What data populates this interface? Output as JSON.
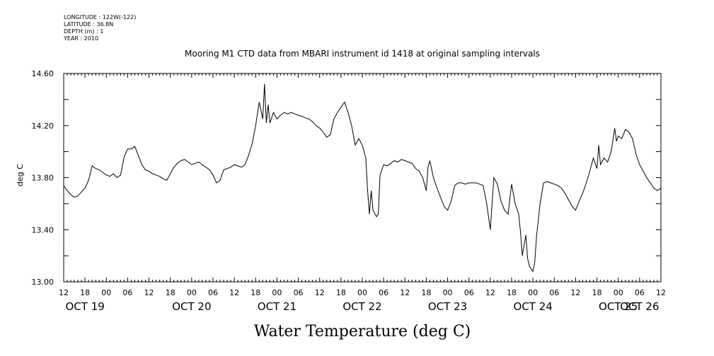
{
  "header": {
    "longitude": "LONGITUDE : 122W(-122)",
    "latitude": "LATITUDE : 36.8N",
    "depth": "DEPTH (m) : 1",
    "year": "YEAR : 2010"
  },
  "chart_data": {
    "type": "line",
    "title": "Mooring M1 CTD data from MBARI instrument id 1418 at original sampling intervals",
    "ylabel": "deg C",
    "xlabel": "Water Temperature (deg C)",
    "ylim": [
      13.0,
      14.6
    ],
    "yticks": [
      "13.00",
      "13.40",
      "13.80",
      "14.20",
      "14.60"
    ],
    "x_range_hours": [
      0,
      168
    ],
    "x_unit": "hours since OCT 19 12:00",
    "hour_tick_labels": [
      "12",
      "18",
      "00",
      "06",
      "12",
      "18",
      "00",
      "06",
      "12",
      "18",
      "00",
      "06",
      "12",
      "18",
      "00",
      "06",
      "12",
      "18",
      "00",
      "06",
      "12",
      "18",
      "00",
      "06",
      "12",
      "18",
      "00",
      "06",
      "12"
    ],
    "date_labels": [
      "OCT 19",
      "OCT 20",
      "OCT 21",
      "OCT 22",
      "OCT 23",
      "OCT 24",
      "OCT 25",
      "OCT 26"
    ],
    "series": [
      {
        "color": "#000000",
        "points": [
          [
            0,
            13.74
          ],
          [
            1,
            13.7
          ],
          [
            2,
            13.67
          ],
          [
            3,
            13.65
          ],
          [
            4,
            13.66
          ],
          [
            5,
            13.69
          ],
          [
            6,
            13.72
          ],
          [
            7,
            13.78
          ],
          [
            8,
            13.89
          ],
          [
            9,
            13.87
          ],
          [
            10,
            13.86
          ],
          [
            11,
            13.84
          ],
          [
            12,
            13.82
          ],
          [
            13,
            13.81
          ],
          [
            14,
            13.83
          ],
          [
            15,
            13.8
          ],
          [
            16,
            13.82
          ],
          [
            17,
            13.96
          ],
          [
            18,
            14.02
          ],
          [
            19,
            14.02
          ],
          [
            20,
            14.04
          ],
          [
            21,
            13.97
          ],
          [
            22,
            13.9
          ],
          [
            23,
            13.86
          ],
          [
            24,
            13.85
          ],
          [
            25,
            13.83
          ],
          [
            26,
            13.82
          ],
          [
            27,
            13.81
          ],
          [
            28,
            13.79
          ],
          [
            29,
            13.78
          ],
          [
            30,
            13.83
          ],
          [
            31,
            13.88
          ],
          [
            32,
            13.91
          ],
          [
            33,
            13.93
          ],
          [
            34,
            13.94
          ],
          [
            35,
            13.92
          ],
          [
            36,
            13.9
          ],
          [
            37,
            13.91
          ],
          [
            38,
            13.92
          ],
          [
            39,
            13.9
          ],
          [
            40,
            13.88
          ],
          [
            41,
            13.86
          ],
          [
            42,
            13.82
          ],
          [
            43,
            13.76
          ],
          [
            44,
            13.78
          ],
          [
            45,
            13.86
          ],
          [
            46,
            13.87
          ],
          [
            47,
            13.88
          ],
          [
            48,
            13.9
          ],
          [
            49,
            13.89
          ],
          [
            50,
            13.88
          ],
          [
            51,
            13.9
          ],
          [
            52,
            13.97
          ],
          [
            53,
            14.06
          ],
          [
            54,
            14.2
          ],
          [
            55,
            14.38
          ],
          [
            56,
            14.25
          ],
          [
            56.5,
            14.52
          ],
          [
            57,
            14.22
          ],
          [
            57.5,
            14.36
          ],
          [
            58,
            14.22
          ],
          [
            59,
            14.3
          ],
          [
            60,
            14.25
          ],
          [
            61,
            14.28
          ],
          [
            62,
            14.3
          ],
          [
            63,
            14.29
          ],
          [
            64,
            14.3
          ],
          [
            65,
            14.29
          ],
          [
            66,
            14.28
          ],
          [
            67,
            14.27
          ],
          [
            68,
            14.26
          ],
          [
            69,
            14.25
          ],
          [
            70,
            14.23
          ],
          [
            71,
            14.2
          ],
          [
            72,
            14.18
          ],
          [
            73,
            14.15
          ],
          [
            74,
            14.11
          ],
          [
            75,
            14.13
          ],
          [
            76,
            14.25
          ],
          [
            77,
            14.3
          ],
          [
            78,
            14.34
          ],
          [
            79,
            14.38
          ],
          [
            80,
            14.3
          ],
          [
            81,
            14.2
          ],
          [
            82,
            14.05
          ],
          [
            83,
            14.1
          ],
          [
            84,
            14.05
          ],
          [
            85,
            13.95
          ],
          [
            85.5,
            13.7
          ],
          [
            86,
            13.52
          ],
          [
            86.5,
            13.7
          ],
          [
            87,
            13.55
          ],
          [
            88,
            13.5
          ],
          [
            88.5,
            13.52
          ],
          [
            89,
            13.82
          ],
          [
            90,
            13.9
          ],
          [
            91,
            13.89
          ],
          [
            92,
            13.91
          ],
          [
            93,
            13.93
          ],
          [
            94,
            13.92
          ],
          [
            95,
            13.94
          ],
          [
            96,
            13.93
          ],
          [
            97,
            13.92
          ],
          [
            98,
            13.91
          ],
          [
            99,
            13.87
          ],
          [
            100,
            13.85
          ],
          [
            101,
            13.8
          ],
          [
            102,
            13.7
          ],
          [
            102.5,
            13.88
          ],
          [
            103,
            13.93
          ],
          [
            104,
            13.8
          ],
          [
            105,
            13.72
          ],
          [
            106,
            13.65
          ],
          [
            107,
            13.58
          ],
          [
            108,
            13.55
          ],
          [
            109,
            13.62
          ],
          [
            110,
            13.74
          ],
          [
            111,
            13.76
          ],
          [
            112,
            13.76
          ],
          [
            113,
            13.75
          ],
          [
            114,
            13.76
          ],
          [
            115,
            13.76
          ],
          [
            116,
            13.76
          ],
          [
            117,
            13.75
          ],
          [
            118,
            13.74
          ],
          [
            119,
            13.6
          ],
          [
            120,
            13.4
          ],
          [
            120.5,
            13.6
          ],
          [
            121,
            13.8
          ],
          [
            122,
            13.75
          ],
          [
            123,
            13.62
          ],
          [
            124,
            13.55
          ],
          [
            125,
            13.52
          ],
          [
            126,
            13.75
          ],
          [
            127,
            13.6
          ],
          [
            128,
            13.52
          ],
          [
            128.5,
            13.38
          ],
          [
            129,
            13.2
          ],
          [
            130,
            13.36
          ],
          [
            130.5,
            13.18
          ],
          [
            131,
            13.12
          ],
          [
            132,
            13.08
          ],
          [
            132.5,
            13.15
          ],
          [
            133,
            13.35
          ],
          [
            134,
            13.6
          ],
          [
            135,
            13.76
          ],
          [
            136,
            13.77
          ],
          [
            137,
            13.76
          ],
          [
            138,
            13.75
          ],
          [
            139,
            13.74
          ],
          [
            140,
            13.72
          ],
          [
            141,
            13.68
          ],
          [
            142,
            13.63
          ],
          [
            143,
            13.58
          ],
          [
            144,
            13.55
          ],
          [
            145,
            13.62
          ],
          [
            146,
            13.68
          ],
          [
            147,
            13.76
          ],
          [
            148,
            13.85
          ],
          [
            149,
            13.95
          ],
          [
            150,
            13.87
          ],
          [
            150.5,
            14.05
          ],
          [
            151,
            13.9
          ],
          [
            152,
            13.95
          ],
          [
            153,
            13.92
          ],
          [
            154,
            14.0
          ],
          [
            155,
            14.18
          ],
          [
            155.5,
            14.08
          ],
          [
            156,
            14.12
          ],
          [
            157,
            14.1
          ],
          [
            158,
            14.17
          ],
          [
            159,
            14.15
          ],
          [
            160,
            14.1
          ],
          [
            161,
            13.98
          ],
          [
            162,
            13.9
          ],
          [
            163,
            13.85
          ],
          [
            164,
            13.8
          ],
          [
            165,
            13.76
          ],
          [
            166,
            13.72
          ],
          [
            167,
            13.7
          ],
          [
            168,
            13.72
          ]
        ]
      }
    ],
    "grid": false
  }
}
